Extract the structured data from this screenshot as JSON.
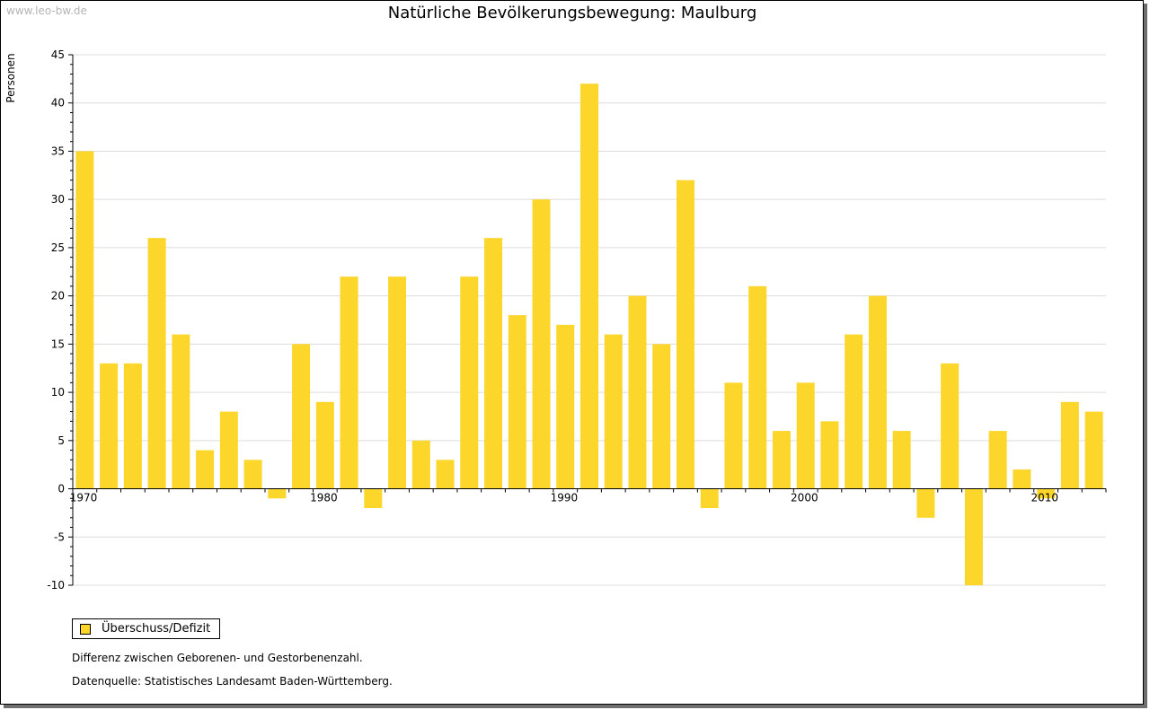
{
  "watermark": "www.leo-bw.de",
  "chart_data": {
    "type": "bar",
    "title": "Natürliche Bevölkerungsbewegung: Maulburg",
    "ylabel": "Personen",
    "xlabel": "",
    "ylim": [
      -10,
      45
    ],
    "yticks": [
      45,
      40,
      35,
      30,
      25,
      20,
      15,
      10,
      5,
      0,
      -5,
      -10
    ],
    "xtick_labels": [
      "1970",
      "1980",
      "1990",
      "2000",
      "2010"
    ],
    "categories": [
      1970,
      1971,
      1972,
      1973,
      1974,
      1975,
      1976,
      1977,
      1978,
      1979,
      1980,
      1981,
      1982,
      1983,
      1984,
      1985,
      1986,
      1987,
      1988,
      1989,
      1990,
      1991,
      1992,
      1993,
      1994,
      1995,
      1996,
      1997,
      1998,
      1999,
      2000,
      2001,
      2002,
      2003,
      2004,
      2005,
      2006,
      2007,
      2008,
      2009,
      2010,
      2011,
      2012
    ],
    "series": [
      {
        "name": "Überschuss/Defizit",
        "color": "#fcd62b",
        "values": [
          35,
          13,
          13,
          26,
          16,
          4,
          8,
          3,
          -1,
          15,
          9,
          22,
          -2,
          22,
          5,
          3,
          22,
          26,
          18,
          30,
          17,
          42,
          16,
          20,
          15,
          32,
          -2,
          11,
          21,
          6,
          11,
          7,
          16,
          20,
          6,
          -3,
          13,
          -10,
          6,
          2,
          -1,
          9,
          8
        ]
      }
    ],
    "grid": true,
    "legend_position": "bottom-left"
  },
  "legend": {
    "label": "Überschuss/Defizit"
  },
  "notes": {
    "line1": "Differenz zwischen Geborenen- und Gestorbenenzahl.",
    "line2": "Datenquelle: Statistisches Landesamt Baden-Württemberg."
  }
}
